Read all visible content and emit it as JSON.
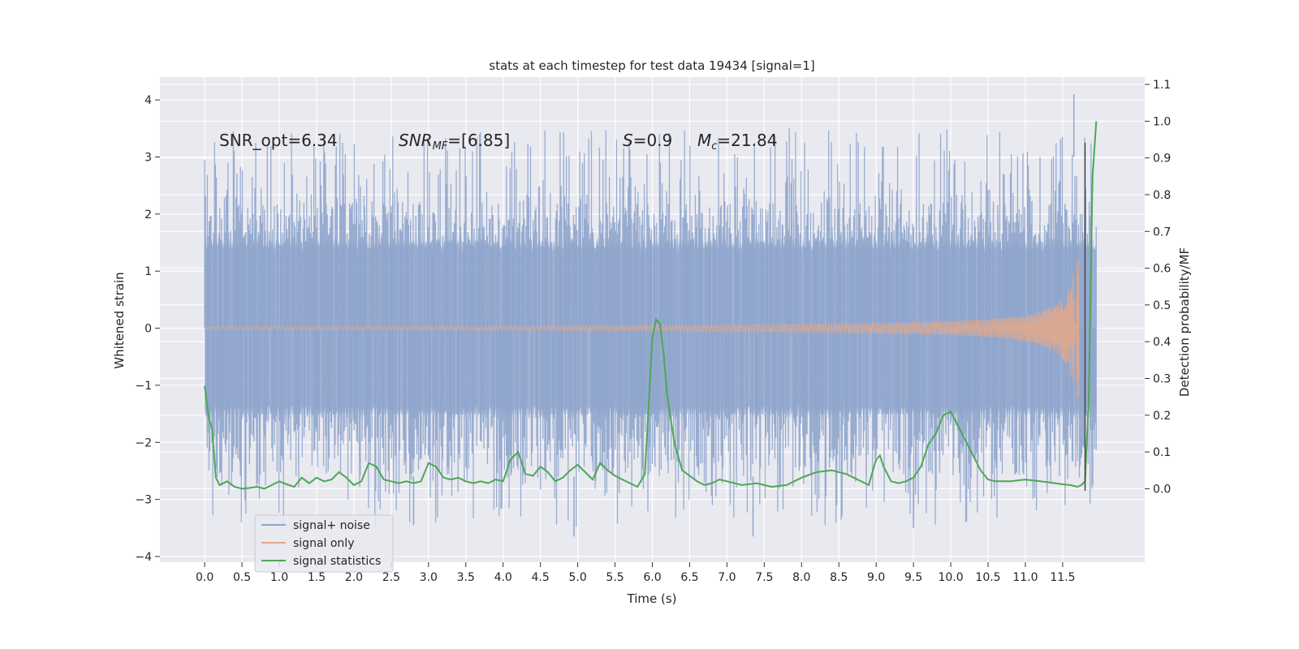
{
  "chart_data": {
    "type": "line",
    "title": "stats at each timestep for test data 19434 [signal=1]",
    "xlabel": "Time (s)",
    "ylabel": "Whitened strain",
    "y2label": "Detection probability/MF",
    "xlim": [
      -0.6,
      12.6
    ],
    "ylim": [
      -4.1,
      4.4
    ],
    "y2lim": [
      -0.2,
      1.12
    ],
    "xticks": [
      "0.0",
      "0.5",
      "1.0",
      "1.5",
      "2.0",
      "2.5",
      "3.0",
      "3.5",
      "4.0",
      "4.5",
      "5.0",
      "5.5",
      "6.0",
      "6.5",
      "7.0",
      "7.5",
      "8.0",
      "8.5",
      "9.0",
      "9.5",
      "10.0",
      "10.5",
      "11.0",
      "11.5"
    ],
    "yticks": [
      "4",
      "3",
      "2",
      "1",
      "0",
      "−1",
      "−2",
      "−3",
      "−4"
    ],
    "y2ticks": [
      "1.1",
      "1.0",
      "0.9",
      "0.8",
      "0.7",
      "0.6",
      "0.5",
      "0.4",
      "0.3",
      "0.2",
      "0.1",
      "0.0"
    ],
    "annotations": {
      "snr_opt": "SNR_opt=6.34",
      "snr_mf_main": "SNR",
      "snr_mf_sub": "MF",
      "snr_mf_val": "=[6.85]",
      "s_main": "S",
      "s_val": "=0.9",
      "mc_main": "M",
      "mc_sub": "c",
      "mc_val": "=21.84"
    },
    "legend": {
      "position": "lower-left",
      "entries": [
        "signal+ noise",
        "signal only",
        "signal statistics"
      ]
    },
    "series": [
      {
        "name": "signal+ noise",
        "color": "#8fa5cc",
        "note": "whitened noisy strain, envelope approx ±1.4 with spikes to about ±3.5, max 4.1 near t=11.65"
      },
      {
        "name": "signal only",
        "color": "#e0a88c",
        "note": "chirp, amplitude near 0 growing to about 1.25 at t=11.7 then ending"
      },
      {
        "name": "signal statistics",
        "color": "#4ea657",
        "x": [
          0.0,
          0.05,
          0.1,
          0.15,
          0.2,
          0.3,
          0.4,
          0.5,
          0.6,
          0.7,
          0.8,
          0.9,
          1.0,
          1.1,
          1.2,
          1.3,
          1.4,
          1.5,
          1.6,
          1.7,
          1.8,
          1.9,
          2.0,
          2.1,
          2.2,
          2.3,
          2.4,
          2.5,
          2.6,
          2.7,
          2.8,
          2.9,
          3.0,
          3.1,
          3.2,
          3.3,
          3.4,
          3.5,
          3.6,
          3.7,
          3.8,
          3.9,
          4.0,
          4.1,
          4.2,
          4.3,
          4.4,
          4.5,
          4.6,
          4.7,
          4.8,
          4.9,
          5.0,
          5.1,
          5.2,
          5.3,
          5.4,
          5.5,
          5.6,
          5.7,
          5.8,
          5.9,
          6.0,
          6.05,
          6.1,
          6.15,
          6.2,
          6.3,
          6.4,
          6.5,
          6.6,
          6.7,
          6.8,
          6.9,
          7.0,
          7.2,
          7.4,
          7.6,
          7.8,
          8.0,
          8.2,
          8.4,
          8.6,
          8.8,
          8.9,
          9.0,
          9.05,
          9.1,
          9.2,
          9.3,
          9.4,
          9.5,
          9.6,
          9.7,
          9.8,
          9.9,
          10.0,
          10.1,
          10.2,
          10.3,
          10.4,
          10.5,
          10.6,
          10.8,
          11.0,
          11.2,
          11.4,
          11.5,
          11.6,
          11.7,
          11.75,
          11.8,
          11.85,
          11.9,
          11.95
        ],
        "values": [
          0.28,
          0.2,
          0.16,
          0.03,
          0.01,
          0.02,
          0.005,
          0.0,
          0.002,
          0.005,
          0.0,
          0.01,
          0.02,
          0.012,
          0.005,
          0.03,
          0.015,
          0.03,
          0.02,
          0.025,
          0.045,
          0.03,
          0.01,
          0.02,
          0.07,
          0.06,
          0.025,
          0.02,
          0.015,
          0.02,
          0.015,
          0.02,
          0.07,
          0.06,
          0.03,
          0.025,
          0.03,
          0.02,
          0.015,
          0.02,
          0.015,
          0.025,
          0.02,
          0.08,
          0.1,
          0.04,
          0.035,
          0.06,
          0.045,
          0.02,
          0.03,
          0.05,
          0.065,
          0.045,
          0.025,
          0.07,
          0.05,
          0.035,
          0.025,
          0.015,
          0.005,
          0.04,
          0.41,
          0.46,
          0.45,
          0.37,
          0.25,
          0.12,
          0.05,
          0.035,
          0.02,
          0.01,
          0.015,
          0.025,
          0.02,
          0.01,
          0.015,
          0.005,
          0.01,
          0.03,
          0.045,
          0.05,
          0.04,
          0.02,
          0.01,
          0.08,
          0.09,
          0.06,
          0.02,
          0.015,
          0.02,
          0.03,
          0.06,
          0.12,
          0.15,
          0.2,
          0.21,
          0.17,
          0.13,
          0.09,
          0.05,
          0.025,
          0.02,
          0.02,
          0.025,
          0.02,
          0.015,
          0.012,
          0.01,
          0.005,
          0.01,
          0.02,
          0.25,
          0.85,
          1.0
        ]
      }
    ],
    "vline": {
      "x": 11.8,
      "ymin": -2.85,
      "ymax": 3.25,
      "color": "#444444"
    }
  }
}
